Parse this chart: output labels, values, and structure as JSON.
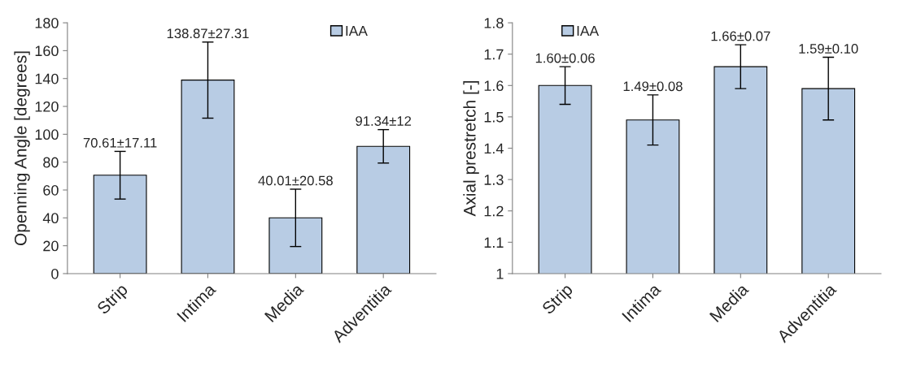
{
  "chart_data": [
    {
      "type": "bar",
      "ylabel": "Openning Angle [degrees]",
      "categories": [
        "Strip",
        "Intima",
        "Media",
        "Adventitia"
      ],
      "series": [
        {
          "name": "IAA",
          "color": "#b8cce4",
          "values": [
            70.61,
            138.87,
            40.01,
            91.34
          ],
          "errors": [
            17.11,
            27.31,
            20.58,
            12
          ],
          "value_labels": [
            "70.61±17.11",
            "138.87±27.31",
            "40.01±20.58",
            "91.34±12"
          ]
        }
      ],
      "ylim": [
        0,
        180
      ],
      "yticks": [
        0,
        20,
        40,
        60,
        80,
        100,
        120,
        140,
        160,
        180
      ],
      "grid": false,
      "legend": "top right"
    },
    {
      "type": "bar",
      "ylabel": "Axial prestretch [-]",
      "categories": [
        "Strip",
        "Intima",
        "Media",
        "Adventitia"
      ],
      "series": [
        {
          "name": "IAA",
          "color": "#b8cce4",
          "values": [
            1.6,
            1.49,
            1.66,
            1.59
          ],
          "errors": [
            0.06,
            0.08,
            0.07,
            0.1
          ],
          "value_labels": [
            "1.60±0.06",
            "1.49±0.08",
            "1.66±0.07",
            "1.59±0.10"
          ]
        }
      ],
      "ylim": [
        1,
        1.8
      ],
      "yticks": [
        1,
        1.1,
        1.2,
        1.3,
        1.4,
        1.5,
        1.6,
        1.7,
        1.8
      ],
      "grid": false,
      "legend": "top left"
    }
  ]
}
